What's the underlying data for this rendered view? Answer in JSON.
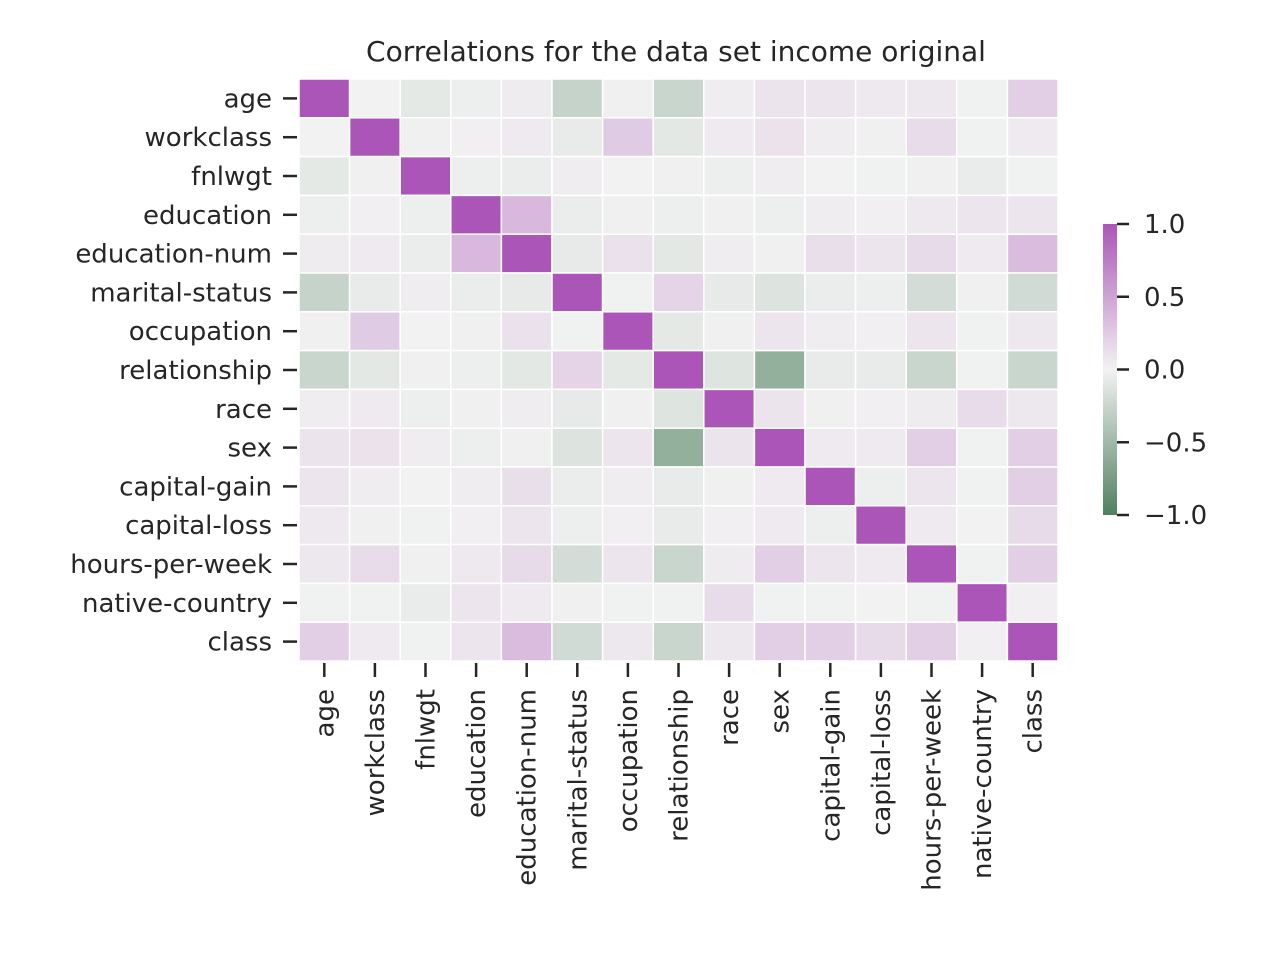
{
  "chart_data": {
    "type": "heatmap",
    "title": "Correlations for the data set income original",
    "labels": [
      "age",
      "workclass",
      "fnlwgt",
      "education",
      "education-num",
      "marital-status",
      "occupation",
      "relationship",
      "race",
      "sex",
      "capital-gain",
      "capital-loss",
      "hours-per-week",
      "native-country",
      "class"
    ],
    "matrix": [
      [
        1.0,
        0.0,
        -0.08,
        -0.03,
        0.04,
        -0.27,
        -0.02,
        -0.25,
        0.03,
        0.09,
        0.08,
        0.06,
        0.07,
        -0.01,
        0.23
      ],
      [
        0.0,
        1.0,
        -0.02,
        0.02,
        0.05,
        -0.06,
        0.25,
        -0.09,
        0.05,
        0.1,
        0.03,
        0.01,
        0.14,
        -0.01,
        0.05
      ],
      [
        -0.08,
        -0.02,
        1.0,
        -0.03,
        -0.04,
        0.03,
        0.0,
        0.01,
        -0.03,
        0.03,
        0.0,
        -0.01,
        -0.02,
        -0.05,
        -0.01
      ],
      [
        -0.03,
        0.02,
        -0.03,
        1.0,
        0.36,
        -0.04,
        -0.02,
        -0.03,
        0.01,
        -0.03,
        0.03,
        0.02,
        0.06,
        0.08,
        0.08
      ],
      [
        0.04,
        0.05,
        -0.04,
        0.36,
        1.0,
        -0.07,
        0.11,
        -0.09,
        0.03,
        0.01,
        0.12,
        0.08,
        0.15,
        0.05,
        0.34
      ],
      [
        -0.27,
        -0.06,
        0.03,
        -0.04,
        -0.07,
        1.0,
        -0.01,
        0.19,
        -0.07,
        -0.13,
        -0.04,
        -0.03,
        -0.19,
        -0.02,
        -0.2
      ],
      [
        -0.02,
        0.25,
        0.0,
        -0.02,
        0.11,
        -0.01,
        1.0,
        -0.08,
        0.01,
        0.08,
        0.03,
        0.02,
        0.08,
        -0.01,
        0.07
      ],
      [
        -0.25,
        -0.09,
        0.01,
        -0.03,
        -0.09,
        0.19,
        -0.08,
        1.0,
        -0.12,
        -0.58,
        -0.06,
        -0.06,
        -0.25,
        -0.01,
        -0.25
      ],
      [
        0.03,
        0.05,
        -0.03,
        0.01,
        0.03,
        -0.07,
        0.01,
        -0.12,
        1.0,
        0.09,
        0.01,
        0.02,
        0.04,
        0.14,
        0.07
      ],
      [
        0.09,
        0.1,
        0.03,
        -0.03,
        0.01,
        -0.13,
        0.08,
        -0.58,
        0.09,
        1.0,
        0.05,
        0.05,
        0.23,
        -0.01,
        0.22
      ],
      [
        0.08,
        0.03,
        0.0,
        0.03,
        0.12,
        -0.04,
        0.03,
        -0.06,
        0.01,
        0.05,
        1.0,
        -0.03,
        0.08,
        -0.01,
        0.22
      ],
      [
        0.06,
        0.01,
        -0.01,
        0.02,
        0.08,
        -0.03,
        0.02,
        -0.06,
        0.02,
        0.05,
        -0.03,
        1.0,
        0.05,
        0.0,
        0.15
      ],
      [
        0.07,
        0.14,
        -0.02,
        0.06,
        0.15,
        -0.19,
        0.08,
        -0.25,
        0.04,
        0.23,
        0.08,
        0.05,
        1.0,
        -0.01,
        0.23
      ],
      [
        -0.01,
        -0.01,
        -0.05,
        0.08,
        0.05,
        -0.02,
        -0.01,
        -0.01,
        0.14,
        -0.01,
        -0.01,
        0.0,
        -0.01,
        1.0,
        0.02
      ],
      [
        0.23,
        0.05,
        -0.01,
        0.08,
        0.34,
        -0.2,
        0.07,
        -0.25,
        0.07,
        0.22,
        0.22,
        0.15,
        0.23,
        0.02,
        1.0
      ]
    ],
    "colorbar": {
      "ticks": [
        1.0,
        0.5,
        0.0,
        -0.5,
        -1.0
      ],
      "tick_labels": [
        "1.0",
        "0.5",
        "0.0",
        "−0.5",
        "−1.0"
      ],
      "range": [
        -1.0,
        1.0
      ],
      "low_color": "#4f8060",
      "mid_color": "#f2f2f2",
      "high_color": "#ab55b8"
    },
    "grid_lines": "white",
    "legend_placement": "right"
  }
}
